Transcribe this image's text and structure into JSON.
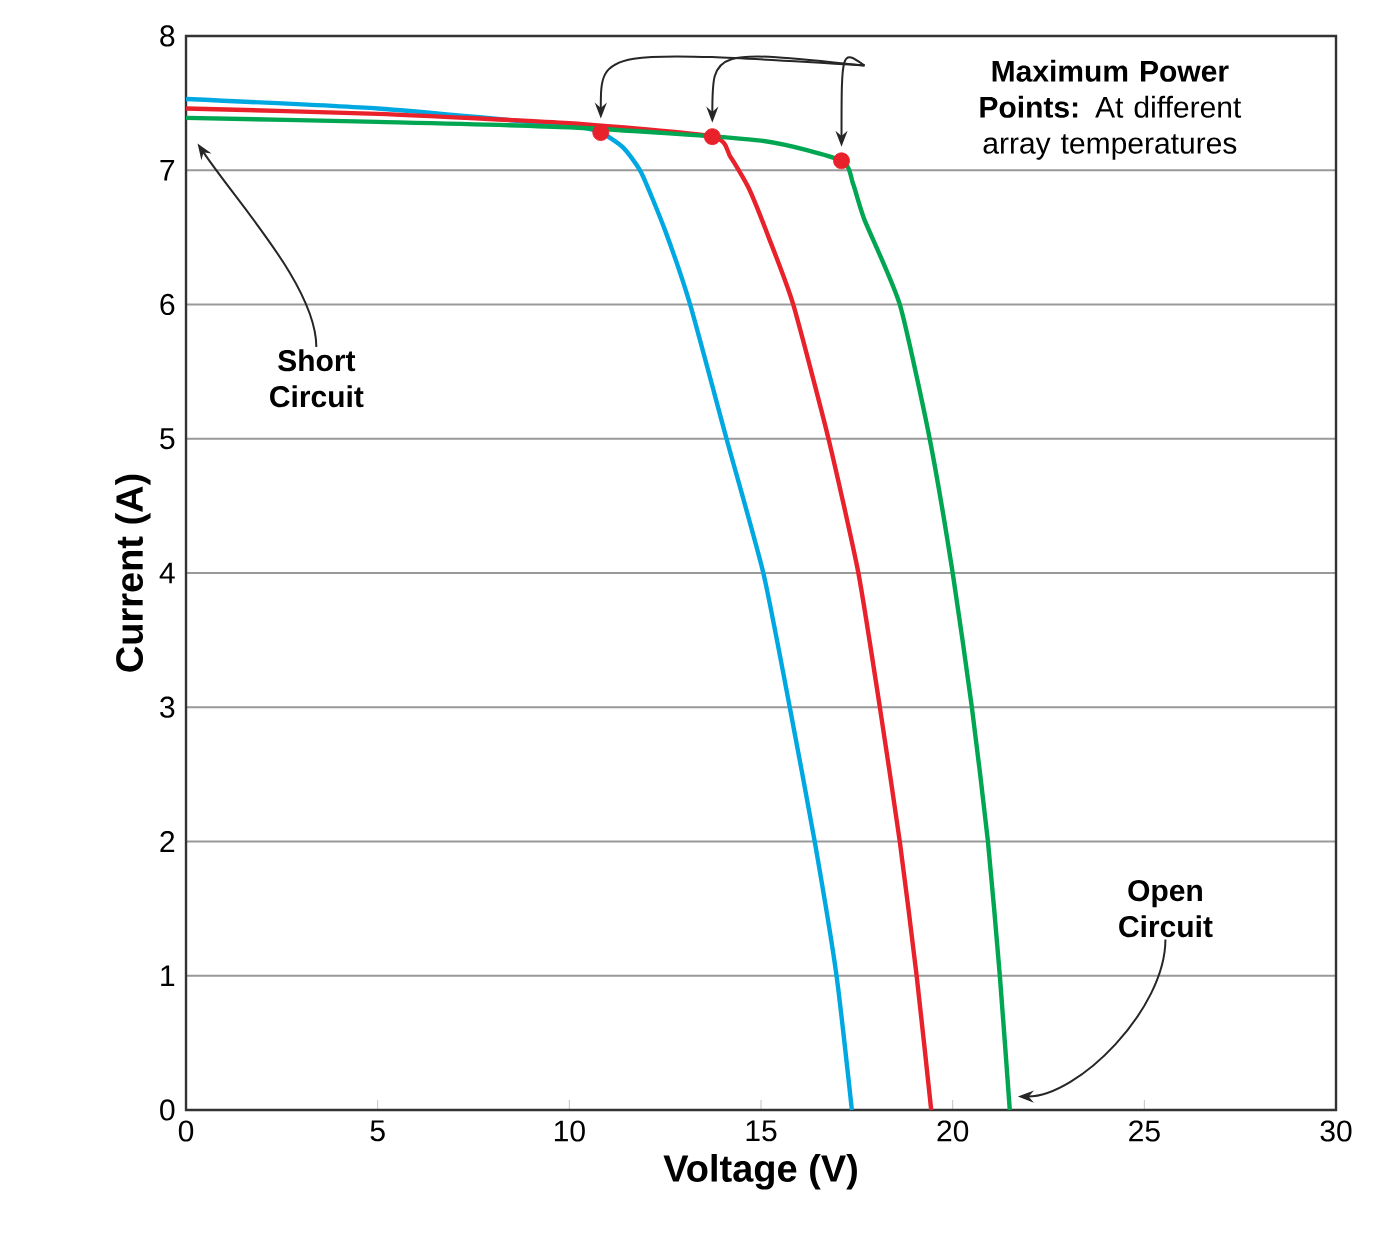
{
  "chart_data": {
    "type": "line",
    "xlabel": "Voltage (V)",
    "ylabel": "Current (A)",
    "xlim": [
      0,
      30
    ],
    "ylim": [
      0,
      8
    ],
    "xticks": [
      0,
      5,
      10,
      15,
      20,
      25,
      30
    ],
    "yticks": [
      0,
      1,
      2,
      3,
      4,
      5,
      6,
      7,
      8
    ],
    "grid": "y",
    "series": [
      {
        "color": "#00a8e1",
        "marker": "none",
        "x": [
          0,
          5,
          10,
          10.82,
          11.4,
          11.88,
          12.5,
          13.15,
          14.1,
          15.06,
          15.75,
          16.4,
          16.97,
          17.37
        ],
        "values": [
          7.53,
          7.46,
          7.33,
          7.28,
          7.17,
          6.98,
          6.55,
          6,
          5,
          4,
          3,
          2,
          1,
          0
        ]
      },
      {
        "color": "#e8212b",
        "marker": "none",
        "x": [
          0,
          5,
          10,
          13.73,
          14.2,
          14.69,
          15.2,
          15.84,
          16.76,
          17.54,
          18.1,
          18.62,
          19.06,
          19.44
        ],
        "values": [
          7.46,
          7.42,
          7.35,
          7.25,
          7.1,
          6.86,
          6.5,
          6,
          5,
          4,
          3,
          2,
          1,
          0
        ]
      },
      {
        "color": "#00a651",
        "marker": "none",
        "x": [
          0,
          5,
          10,
          15,
          17.1,
          17.4,
          17.7,
          18.62,
          19.4,
          20.0,
          20.5,
          20.92,
          21.23,
          21.49
        ],
        "values": [
          7.39,
          7.36,
          7.32,
          7.22,
          7.07,
          6.9,
          6.63,
          6,
          5,
          4,
          3,
          2,
          1,
          0
        ]
      },
      {
        "type": "scatter",
        "color": "#e8212b",
        "marker": "circle",
        "x": [
          10.82,
          13.73,
          17.1
        ],
        "values": [
          7.28,
          7.25,
          7.07
        ]
      }
    ],
    "annotations": [
      "**Maximum Power Points:** At different array temperatures",
      "**Short Circuit**",
      "**Open Circuit**"
    ]
  }
}
